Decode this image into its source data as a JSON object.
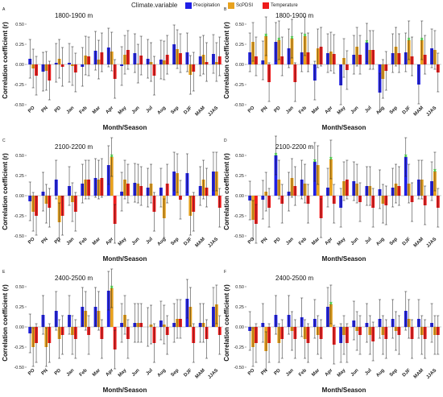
{
  "legend": {
    "title": "Climate.variable",
    "items": [
      {
        "label": "Precipitation",
        "color": "#1f1fe6"
      },
      {
        "label": "ScPDSI",
        "color": "#e8a21e"
      },
      {
        "label": "Temperature",
        "color": "#ee1b1b"
      }
    ]
  },
  "chart_data": [
    {
      "type": "bar",
      "panel": "A",
      "label": "1800-1900 m",
      "xlabel": "Month/Season",
      "ylabel": "Correlation coefficient (r)",
      "ylim": [
        -0.5,
        0.6
      ],
      "yticks": [
        "0.50",
        "0.25",
        "0.00",
        "-0.25",
        "-0.50"
      ],
      "categories": [
        "PO",
        "PN",
        "PD",
        "Jan",
        "Feb",
        "Mar",
        "Apr",
        "May",
        "Jun",
        "Jul",
        "Aug",
        "Sep",
        "DJF",
        "MAM",
        "JJAS"
      ],
      "series": [
        {
          "name": "Precipitation",
          "values": [
            0.07,
            -0.09,
            0.02,
            0.02,
            -0.03,
            0.17,
            0.21,
            -0.02,
            0.14,
            0.07,
            0.06,
            0.25,
            0.15,
            0.1,
            0.13
          ]
        },
        {
          "name": "ScPDSI",
          "values": [
            -0.05,
            -0.08,
            0.07,
            -0.02,
            0.11,
            0.06,
            0.16,
            0.12,
            0.01,
            0.03,
            0.05,
            0.19,
            -0.13,
            0.12,
            0.03
          ]
        },
        {
          "name": "Temperature",
          "values": [
            -0.14,
            -0.2,
            -0.03,
            -0.1,
            0.1,
            0.15,
            -0.18,
            0.18,
            0.11,
            -0.14,
            0.12,
            0.14,
            -0.09,
            0.03,
            0.1
          ]
        }
      ],
      "significant": []
    },
    {
      "type": "bar",
      "panel": "B",
      "label": "1800-1900 m",
      "xlabel": "Month/Season",
      "ylabel": "Correlation coefficient (r)",
      "ylim": [
        -0.5,
        0.6
      ],
      "yticks": [
        "0.50",
        "0.25",
        "0.00",
        "-0.25",
        "-0.50"
      ],
      "categories": [
        "PO",
        "PN",
        "PD",
        "Jan",
        "Feb",
        "Mar",
        "Apr",
        "May",
        "Jun",
        "Jul",
        "Aug",
        "Sep",
        "DJF",
        "MAM",
        "JJAS"
      ],
      "series": [
        {
          "name": "Precipitation",
          "values": [
            0.15,
            0.05,
            0.28,
            0.2,
            0.15,
            -0.2,
            0.14,
            -0.26,
            0.12,
            0.27,
            -0.35,
            0.14,
            0.15,
            -0.25,
            0.2
          ]
        },
        {
          "name": "ScPDSI",
          "values": [
            0.28,
            0.35,
            0.3,
            0.32,
            0.35,
            0.2,
            0.16,
            0.08,
            0.22,
            0.18,
            -0.18,
            0.22,
            0.3,
            0.3,
            0.18
          ]
        },
        {
          "name": "Temperature",
          "values": [
            0.1,
            -0.22,
            0.1,
            -0.22,
            0.15,
            0.22,
            0.13,
            -0.07,
            0.12,
            0.18,
            -0.08,
            0.14,
            0.1,
            0.12,
            -0.1
          ]
        }
      ],
      "significant": [
        [
          1,
          "ScPDSI"
        ],
        [
          2,
          "ScPDSI"
        ],
        [
          3,
          "ScPDSI"
        ],
        [
          4,
          "ScPDSI"
        ],
        [
          12,
          "ScPDSI"
        ],
        [
          13,
          "ScPDSI"
        ],
        [
          9,
          "Precipitation"
        ]
      ]
    },
    {
      "type": "bar",
      "panel": "C",
      "label": "2100-2200 m",
      "xlabel": "Month/Season",
      "ylabel": "Correlation coefficient (r)",
      "ylim": [
        -0.5,
        0.6
      ],
      "yticks": [
        "0.50",
        "0.25",
        "0.00",
        "-0.25",
        "-0.50"
      ],
      "categories": [
        "PO",
        "PN",
        "PD",
        "Jan",
        "Feb",
        "Mar",
        "Apr",
        "May",
        "Jun",
        "Jul",
        "Aug",
        "Sep",
        "DJF",
        "MAM",
        "JJAS"
      ],
      "series": [
        {
          "name": "Precipitation",
          "values": [
            -0.07,
            0.05,
            0.2,
            0.12,
            0.15,
            0.22,
            0.38,
            0.05,
            0.16,
            0.1,
            0.1,
            0.3,
            0.28,
            0.12,
            0.3
          ]
        },
        {
          "name": "ScPDSI",
          "values": [
            -0.2,
            -0.1,
            -0.33,
            -0.08,
            0.2,
            0.2,
            0.48,
            0.2,
            0.15,
            0.15,
            -0.28,
            0.28,
            -0.25,
            0.2,
            0.3
          ]
        },
        {
          "name": "Temperature",
          "values": [
            -0.25,
            -0.15,
            -0.25,
            -0.2,
            0.2,
            0.22,
            -0.35,
            0.15,
            0.12,
            -0.2,
            0.15,
            -0.05,
            -0.2,
            0.1,
            -0.15
          ]
        }
      ],
      "significant": [
        [
          6,
          "ScPDSI"
        ]
      ]
    },
    {
      "type": "bar",
      "panel": "D",
      "label": "2100-2200 m",
      "xlabel": "Month/Season",
      "ylabel": "Correlation coefficient (r)",
      "ylim": [
        -0.5,
        0.6
      ],
      "yticks": [
        "0.50",
        "0.25",
        "0.00",
        "-0.25",
        "-0.50"
      ],
      "categories": [
        "PO",
        "PN",
        "PD",
        "Jan",
        "Feb",
        "Mar",
        "Apr",
        "May",
        "Jun",
        "Jul",
        "Aug",
        "Sep",
        "DJF",
        "MAM",
        "JJAS"
      ],
      "series": [
        {
          "name": "Precipitation",
          "values": [
            -0.06,
            -0.05,
            0.5,
            0.05,
            0.2,
            0.42,
            0.1,
            -0.15,
            0.18,
            0.12,
            0.08,
            0.1,
            0.48,
            0.2,
            0.18
          ]
        },
        {
          "name": "ScPDSI",
          "values": [
            -0.3,
            0.05,
            0.2,
            0.22,
            0.15,
            0.38,
            0.45,
            0.18,
            0.15,
            0.12,
            -0.1,
            0.15,
            0.15,
            0.2,
            0.3
          ]
        },
        {
          "name": "Temperature",
          "values": [
            -0.35,
            -0.15,
            -0.1,
            0.12,
            -0.1,
            -0.28,
            -0.1,
            0.2,
            -0.08,
            -0.15,
            -0.12,
            0.12,
            -0.08,
            -0.12,
            -0.15
          ]
        }
      ],
      "significant": [
        [
          2,
          "Precipitation"
        ],
        [
          5,
          "Precipitation"
        ],
        [
          6,
          "ScPDSI"
        ],
        [
          12,
          "Precipitation"
        ],
        [
          14,
          "ScPDSI"
        ]
      ]
    },
    {
      "type": "bar",
      "panel": "E",
      "label": "2400-2500 m",
      "xlabel": "Month/Season",
      "ylabel": "Correlation coefficient (r)",
      "ylim": [
        -0.5,
        0.6
      ],
      "yticks": [
        "0.50",
        "0.25",
        "0.00",
        "-0.25",
        "-0.50"
      ],
      "categories": [
        "PO",
        "PN",
        "PD",
        "Jan",
        "Feb",
        "Mar",
        "Apr",
        "May",
        "Jun",
        "Jul",
        "Aug",
        "Sep",
        "DJF",
        "MAM",
        "JJAS"
      ],
      "series": [
        {
          "name": "Precipitation",
          "values": [
            -0.08,
            0.15,
            0.2,
            0.15,
            0.25,
            0.25,
            0.45,
            0.05,
            0.05,
            0.0,
            0.08,
            0.05,
            0.35,
            0.05,
            0.25
          ]
        },
        {
          "name": "ScPDSI",
          "values": [
            -0.25,
            -0.25,
            -0.15,
            -0.1,
            0.2,
            0.2,
            0.48,
            0.15,
            0.05,
            0.03,
            0.03,
            0.1,
            0.25,
            0.05,
            0.28
          ]
        },
        {
          "name": "Temperature",
          "values": [
            -0.2,
            -0.2,
            -0.1,
            -0.15,
            -0.1,
            -0.15,
            -0.28,
            -0.15,
            0.05,
            -0.2,
            -0.1,
            0.1,
            -0.2,
            -0.15,
            -0.1
          ]
        }
      ],
      "significant": [
        [
          6,
          "ScPDSI"
        ]
      ]
    },
    {
      "type": "bar",
      "panel": "F",
      "label": "2400-2500 m",
      "xlabel": "Month/Season",
      "ylabel": "Correlation coefficient (r)",
      "ylim": [
        -0.5,
        0.6
      ],
      "yticks": [
        "0.50",
        "0.25",
        "0.00",
        "-0.25",
        "-0.50"
      ],
      "categories": [
        "PO",
        "PN",
        "PD",
        "Jan",
        "Feb",
        "Mar",
        "Apr",
        "May",
        "Jun",
        "Jul",
        "Aug",
        "Sep",
        "DJF",
        "MAM",
        "JJAS"
      ],
      "series": [
        {
          "name": "Precipitation",
          "values": [
            -0.05,
            0.05,
            0.15,
            0.15,
            0.12,
            0.1,
            0.25,
            -0.2,
            0.08,
            0.05,
            0.1,
            0.1,
            0.2,
            0.1,
            0.05
          ]
        },
        {
          "name": "ScPDSI",
          "values": [
            -0.25,
            -0.3,
            -0.2,
            -0.05,
            -0.15,
            -0.1,
            0.28,
            -0.1,
            -0.05,
            -0.1,
            -0.1,
            -0.05,
            0.1,
            -0.1,
            -0.1
          ]
        },
        {
          "name": "Temperature",
          "values": [
            -0.2,
            -0.2,
            -0.15,
            -0.15,
            -0.2,
            -0.15,
            -0.22,
            -0.2,
            -0.1,
            -0.18,
            -0.15,
            -0.1,
            -0.15,
            -0.15,
            -0.1
          ]
        }
      ],
      "significant": [
        [
          6,
          "ScPDSI"
        ]
      ]
    }
  ]
}
